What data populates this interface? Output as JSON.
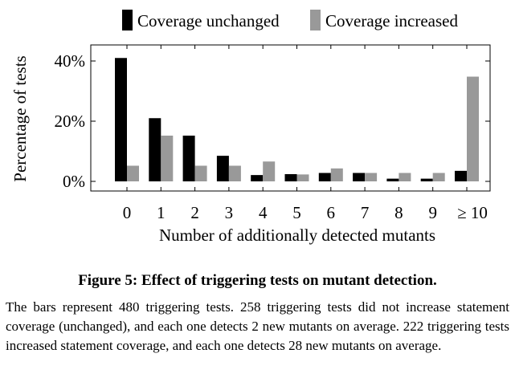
{
  "chart_data": {
    "type": "bar",
    "title": "",
    "xlabel": "Number of additionally detected mutants",
    "ylabel": "Percentage of tests",
    "categories": [
      "0",
      "1",
      "2",
      "3",
      "4",
      "5",
      "6",
      "7",
      "8",
      "9",
      "≥ 10"
    ],
    "series": [
      {
        "name": "Coverage unchanged",
        "color": "#000000",
        "values": [
          41,
          21,
          15.2,
          8.5,
          2.1,
          2.4,
          2.8,
          2.8,
          0.9,
          0.9,
          3.5
        ]
      },
      {
        "name": "Coverage increased",
        "color": "#999999",
        "values": [
          5.2,
          15.2,
          5.2,
          5.2,
          6.6,
          2.3,
          4.3,
          2.8,
          2.8,
          2.8,
          34.8
        ]
      }
    ],
    "ylim": [
      0,
      43
    ],
    "yticks": [
      0,
      20,
      40
    ],
    "ytick_labels": [
      "0%",
      "20%",
      "40%"
    ],
    "legend_position": "top",
    "grid": false
  },
  "caption": {
    "title": "Figure 5: Effect of triggering tests on mutant detection.",
    "body": "The bars represent 480 triggering tests. 258 triggering tests did not increase statement coverage (unchanged), and each one detects 2 new mutants on average. 222 triggering tests increased statement coverage, and each one detects 28 new mutants on average."
  }
}
